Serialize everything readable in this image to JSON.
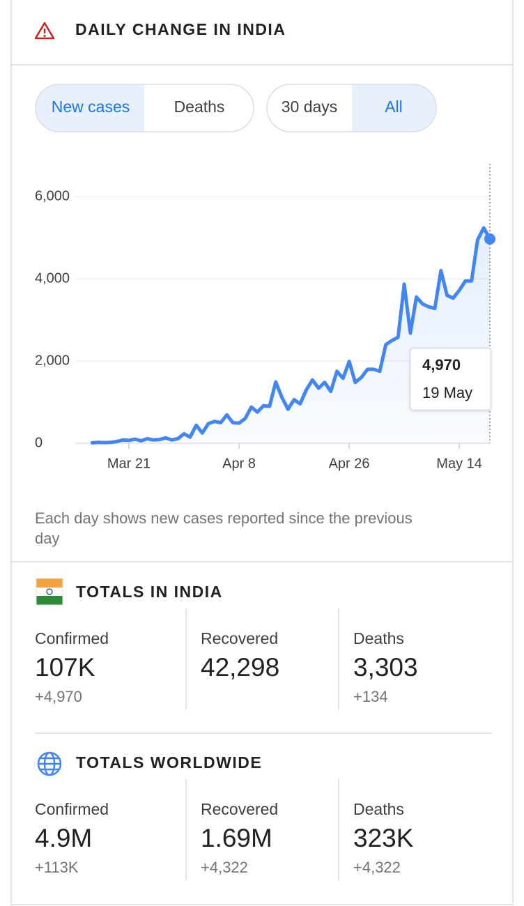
{
  "header": {
    "title": "DAILY CHANGE IN INDIA"
  },
  "toggles": {
    "metric": [
      "New cases",
      "Deaths"
    ],
    "range": [
      "30 days",
      "All"
    ]
  },
  "chart_data": {
    "type": "line",
    "categories": [
      null,
      null,
      null,
      null,
      null,
      null,
      "Mar 21",
      null,
      null,
      null,
      null,
      null,
      null,
      null,
      null,
      null,
      null,
      null,
      null,
      null,
      null,
      null,
      null,
      null,
      "Apr 8",
      null,
      null,
      null,
      null,
      null,
      null,
      null,
      null,
      null,
      null,
      null,
      null,
      null,
      null,
      null,
      null,
      null,
      "Apr 26",
      null,
      null,
      null,
      null,
      null,
      null,
      null,
      null,
      null,
      null,
      null,
      null,
      null,
      null,
      null,
      null,
      null,
      "May 14",
      null,
      null,
      null,
      null,
      null
    ],
    "values": [
      10,
      20,
      15,
      20,
      40,
      80,
      70,
      100,
      60,
      110,
      80,
      90,
      130,
      80,
      110,
      230,
      150,
      440,
      250,
      480,
      530,
      500,
      690,
      500,
      490,
      600,
      880,
      760,
      910,
      900,
      1490,
      1120,
      830,
      1060,
      960,
      1300,
      1540,
      1340,
      1480,
      1260,
      1750,
      1580,
      1990,
      1480,
      1600,
      1800,
      1800,
      1750,
      2400,
      2500,
      2580,
      3870,
      2680,
      3560,
      3390,
      3320,
      3280,
      4200,
      3600,
      3530,
      3720,
      3950,
      3950,
      4950,
      5240,
      4970
    ],
    "color": "#4285f4",
    "ylim": [
      0,
      6800
    ],
    "yticks": [
      0,
      {
        "value": 2000,
        "label": "2,000"
      },
      {
        "value": 4000,
        "label": "4,000"
      },
      {
        "value": 6000,
        "label": "6,000"
      }
    ],
    "grid": true,
    "tooltip": {
      "value_label": "4,970",
      "date": "19 May"
    }
  },
  "caption": [
    "Each day shows new cases reported since the previous",
    "day"
  ],
  "totals": [
    {
      "title": "TOTALS IN INDIA",
      "stats": [
        {
          "label": "Confirmed",
          "value": "107K",
          "change": "+4,970"
        },
        {
          "label": "Recovered",
          "value": "42,298"
        },
        {
          "label": "Deaths",
          "value": "3,303",
          "change": "+134"
        }
      ]
    },
    {
      "title": "TOTALS WORLDWIDE",
      "stats": [
        {
          "label": "Confirmed",
          "value": "4.9M",
          "change": "+113K"
        },
        {
          "label": "Recovered",
          "value": "1.69M",
          "change": "+4,322"
        },
        {
          "label": "Deaths",
          "value": "323K",
          "change": "+4,322"
        }
      ]
    }
  ]
}
